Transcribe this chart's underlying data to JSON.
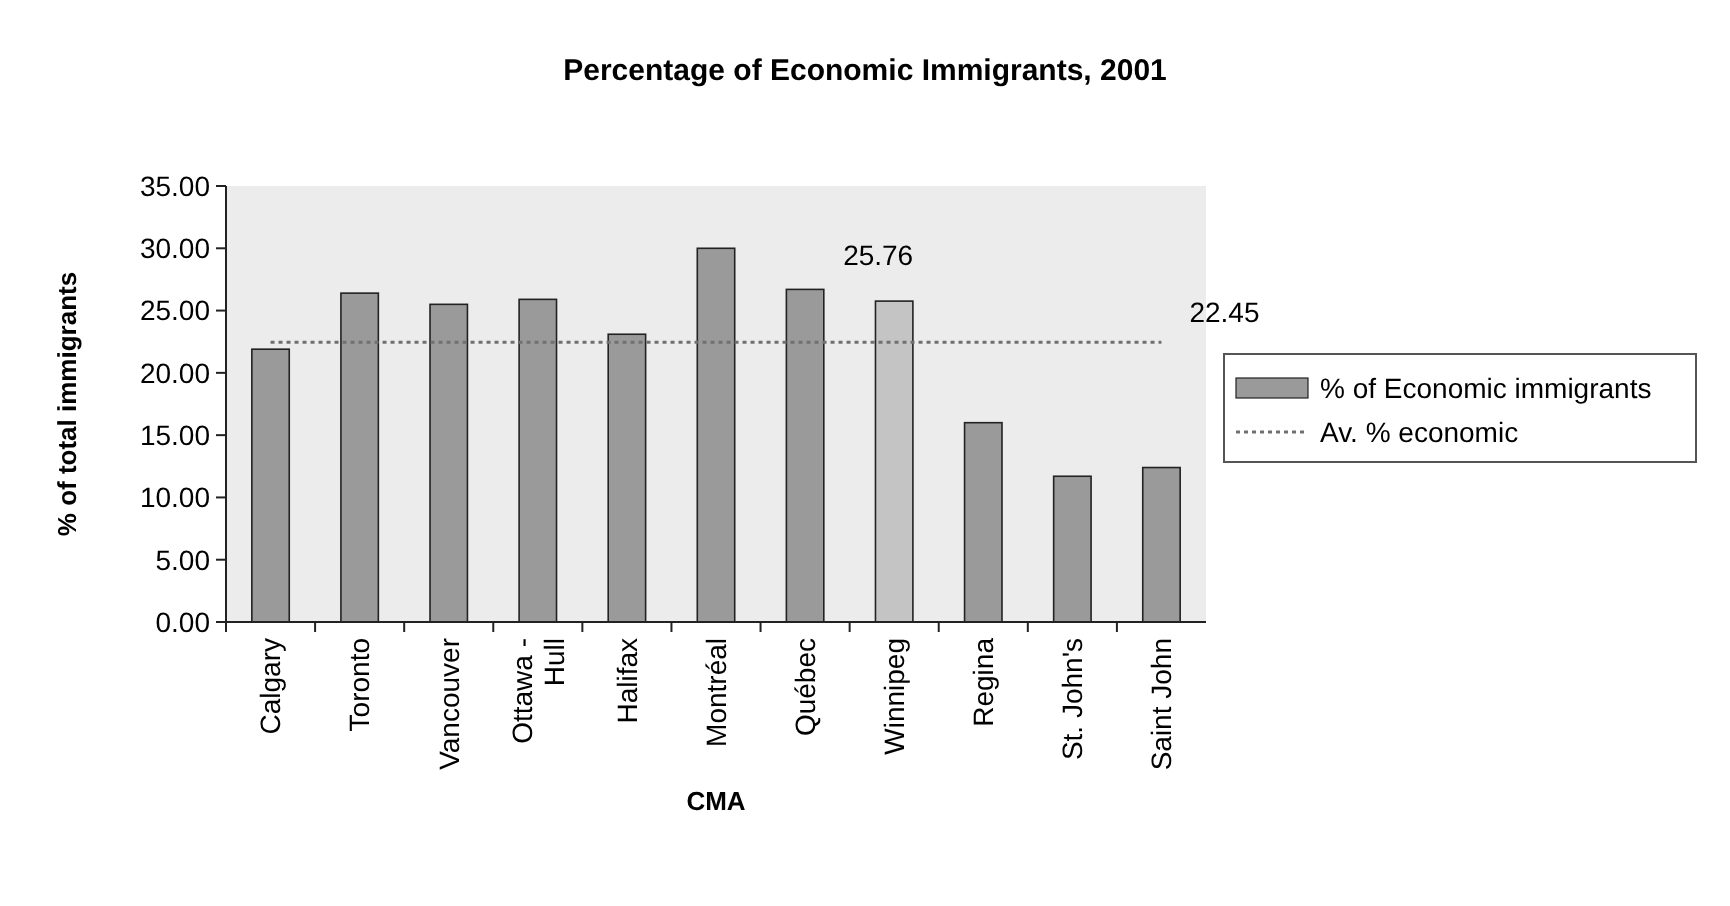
{
  "chart_data": {
    "type": "bar",
    "title": "Percentage of Economic Immigrants, 2001",
    "xlabel": "CMA",
    "ylabel": "% of total immigrants",
    "categories": [
      "Calgary",
      "Toronto",
      "Vancouver",
      "Ottawa - Hull",
      "Halifax",
      "Montréal",
      "Québec",
      "Winnipeg",
      "Regina",
      "St. John's",
      "Saint John"
    ],
    "series": [
      {
        "name": "% of Economic immigrants",
        "color": "#9a9a9a",
        "colors": [
          "#9a9a9a",
          "#9a9a9a",
          "#9a9a9a",
          "#9a9a9a",
          "#9a9a9a",
          "#9a9a9a",
          "#9a9a9a",
          "#c4c4c4",
          "#9a9a9a",
          "#9a9a9a",
          "#9a9a9a"
        ],
        "values": [
          21.9,
          26.4,
          25.5,
          25.9,
          23.1,
          30.0,
          26.7,
          25.76,
          16.0,
          11.7,
          12.4
        ],
        "value_labels": [
          null,
          null,
          null,
          null,
          null,
          null,
          null,
          "25.76",
          null,
          null,
          null
        ]
      },
      {
        "name": "Av. % economic",
        "type": "line",
        "color": "#707070",
        "line_style": "dotted",
        "values": [
          22.45,
          22.45,
          22.45,
          22.45,
          22.45,
          22.45,
          22.45,
          22.45,
          22.45,
          22.45,
          22.45
        ],
        "value_labels": [
          null,
          null,
          null,
          null,
          null,
          null,
          null,
          null,
          null,
          null,
          "22.45"
        ]
      }
    ],
    "ylim": [
      0,
      35
    ],
    "yticks": [
      {
        "value": 0,
        "label": "0.00"
      },
      {
        "value": 5,
        "label": "5.00"
      },
      {
        "value": 10,
        "label": "10.00"
      },
      {
        "value": 15,
        "label": "15.00"
      },
      {
        "value": 20,
        "label": "20.00"
      },
      {
        "value": 25,
        "label": "25.00"
      },
      {
        "value": 30,
        "label": "30.00"
      },
      {
        "value": 35,
        "label": "35.00"
      }
    ],
    "legend": "right"
  }
}
